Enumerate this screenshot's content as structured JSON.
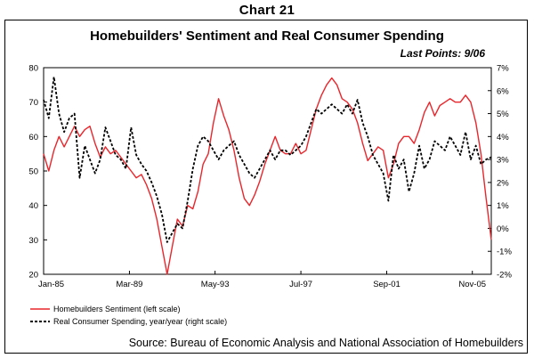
{
  "chart_label": "Chart 21",
  "chart_data": {
    "type": "line",
    "title": "Homebuilders' Sentiment and Real Consumer Spending",
    "subtitle": "Last Points: 9/06",
    "source": "Source: Bureau of Economic Analysis and National Association of Homebuilders",
    "x_ticks": [
      "Jan-85",
      "Mar-89",
      "May-93",
      "Jul-97",
      "Sep-01",
      "Nov-05"
    ],
    "x_tick_dates": [
      1985.0,
      1989.17,
      1993.33,
      1997.5,
      2001.67,
      2005.83
    ],
    "xlim": [
      1985.0,
      2006.75
    ],
    "ylim_left": [
      20,
      80
    ],
    "left_ticks": [
      "20",
      "30",
      "40",
      "50",
      "60",
      "70",
      "80"
    ],
    "left_tick_values": [
      20,
      30,
      40,
      50,
      60,
      70,
      80
    ],
    "ylim_right": [
      -2,
      7
    ],
    "right_ticks": [
      "-2%",
      "-1%",
      "0%",
      "1%",
      "2%",
      "3%",
      "4%",
      "5%",
      "6%",
      "7%"
    ],
    "right_tick_values": [
      -2,
      -1,
      0,
      1,
      2,
      3,
      4,
      5,
      6,
      7
    ],
    "grid": false,
    "legend_position": "bottom-left",
    "colors": {
      "sentiment": "#e8262c",
      "spending": "#000000"
    },
    "series": [
      {
        "name": "Homebuilders Sentiment (left scale)",
        "axis": "left",
        "style": "solid",
        "points": [
          [
            1985.0,
            55
          ],
          [
            1985.25,
            50
          ],
          [
            1985.5,
            56
          ],
          [
            1985.75,
            60
          ],
          [
            1986.0,
            57
          ],
          [
            1986.25,
            60
          ],
          [
            1986.5,
            63
          ],
          [
            1986.75,
            60
          ],
          [
            1987.0,
            62
          ],
          [
            1987.25,
            63
          ],
          [
            1987.5,
            58
          ],
          [
            1987.75,
            54
          ],
          [
            1988.0,
            57
          ],
          [
            1988.25,
            55
          ],
          [
            1988.5,
            56
          ],
          [
            1988.75,
            54
          ],
          [
            1989.0,
            52
          ],
          [
            1989.25,
            50
          ],
          [
            1989.5,
            48
          ],
          [
            1989.75,
            49
          ],
          [
            1990.0,
            46
          ],
          [
            1990.25,
            42
          ],
          [
            1990.5,
            36
          ],
          [
            1990.75,
            28
          ],
          [
            1991.0,
            20
          ],
          [
            1991.25,
            28
          ],
          [
            1991.5,
            36
          ],
          [
            1991.75,
            34
          ],
          [
            1992.0,
            40
          ],
          [
            1992.25,
            39
          ],
          [
            1992.5,
            44
          ],
          [
            1992.75,
            52
          ],
          [
            1993.0,
            55
          ],
          [
            1993.25,
            64
          ],
          [
            1993.5,
            71
          ],
          [
            1993.75,
            66
          ],
          [
            1994.0,
            62
          ],
          [
            1994.25,
            56
          ],
          [
            1994.5,
            48
          ],
          [
            1994.75,
            42
          ],
          [
            1995.0,
            40
          ],
          [
            1995.25,
            43
          ],
          [
            1995.5,
            47
          ],
          [
            1995.75,
            52
          ],
          [
            1996.0,
            56
          ],
          [
            1996.25,
            60
          ],
          [
            1996.5,
            56
          ],
          [
            1996.75,
            55
          ],
          [
            1997.0,
            55
          ],
          [
            1997.25,
            58
          ],
          [
            1997.5,
            55
          ],
          [
            1997.75,
            56
          ],
          [
            1998.0,
            62
          ],
          [
            1998.25,
            68
          ],
          [
            1998.5,
            72
          ],
          [
            1998.75,
            75
          ],
          [
            1999.0,
            77
          ],
          [
            1999.25,
            75
          ],
          [
            1999.5,
            71
          ],
          [
            1999.75,
            70
          ],
          [
            2000.0,
            68
          ],
          [
            2000.25,
            64
          ],
          [
            2000.5,
            58
          ],
          [
            2000.75,
            53
          ],
          [
            2001.0,
            55
          ],
          [
            2001.25,
            57
          ],
          [
            2001.5,
            56
          ],
          [
            2001.75,
            48
          ],
          [
            2002.0,
            52
          ],
          [
            2002.25,
            58
          ],
          [
            2002.5,
            60
          ],
          [
            2002.75,
            60
          ],
          [
            2003.0,
            58
          ],
          [
            2003.25,
            62
          ],
          [
            2003.5,
            67
          ],
          [
            2003.75,
            70
          ],
          [
            2004.0,
            66
          ],
          [
            2004.25,
            69
          ],
          [
            2004.5,
            70
          ],
          [
            2004.75,
            71
          ],
          [
            2005.0,
            70
          ],
          [
            2005.25,
            70
          ],
          [
            2005.5,
            72
          ],
          [
            2005.75,
            70
          ],
          [
            2006.0,
            64
          ],
          [
            2006.25,
            55
          ],
          [
            2006.5,
            42
          ],
          [
            2006.75,
            30
          ]
        ]
      },
      {
        "name": "Real Consumer Spending, year/year (right scale)",
        "axis": "right",
        "style": "dashed",
        "points": [
          [
            1985.0,
            5.6
          ],
          [
            1985.25,
            4.8
          ],
          [
            1985.5,
            6.6
          ],
          [
            1985.75,
            5.0
          ],
          [
            1986.0,
            4.2
          ],
          [
            1986.25,
            4.8
          ],
          [
            1986.5,
            5.0
          ],
          [
            1986.75,
            2.2
          ],
          [
            1987.0,
            3.6
          ],
          [
            1987.25,
            3.0
          ],
          [
            1987.5,
            2.4
          ],
          [
            1987.75,
            3.0
          ],
          [
            1988.0,
            4.4
          ],
          [
            1988.25,
            3.8
          ],
          [
            1988.5,
            3.2
          ],
          [
            1988.75,
            3.0
          ],
          [
            1989.0,
            2.6
          ],
          [
            1989.25,
            4.4
          ],
          [
            1989.5,
            3.2
          ],
          [
            1989.75,
            2.8
          ],
          [
            1990.0,
            2.5
          ],
          [
            1990.25,
            2.0
          ],
          [
            1990.5,
            1.4
          ],
          [
            1990.75,
            0.6
          ],
          [
            1991.0,
            -0.6
          ],
          [
            1991.25,
            -0.2
          ],
          [
            1991.5,
            0.2
          ],
          [
            1991.75,
            0.0
          ],
          [
            1992.0,
            1.2
          ],
          [
            1992.25,
            2.6
          ],
          [
            1992.5,
            3.6
          ],
          [
            1992.75,
            4.0
          ],
          [
            1993.0,
            3.8
          ],
          [
            1993.25,
            3.4
          ],
          [
            1993.5,
            3.0
          ],
          [
            1993.75,
            3.4
          ],
          [
            1994.0,
            3.6
          ],
          [
            1994.25,
            3.8
          ],
          [
            1994.5,
            3.2
          ],
          [
            1994.75,
            2.8
          ],
          [
            1995.0,
            2.4
          ],
          [
            1995.25,
            2.2
          ],
          [
            1995.5,
            2.6
          ],
          [
            1995.75,
            3.0
          ],
          [
            1996.0,
            3.4
          ],
          [
            1996.25,
            3.0
          ],
          [
            1996.5,
            3.4
          ],
          [
            1996.75,
            3.4
          ],
          [
            1997.0,
            3.2
          ],
          [
            1997.25,
            3.4
          ],
          [
            1997.5,
            3.6
          ],
          [
            1997.75,
            4.0
          ],
          [
            1998.0,
            4.6
          ],
          [
            1998.25,
            5.2
          ],
          [
            1998.5,
            5.0
          ],
          [
            1998.75,
            5.2
          ],
          [
            1999.0,
            5.4
          ],
          [
            1999.25,
            5.2
          ],
          [
            1999.5,
            5.0
          ],
          [
            1999.75,
            5.4
          ],
          [
            2000.0,
            5.0
          ],
          [
            2000.25,
            5.6
          ],
          [
            2000.5,
            4.6
          ],
          [
            2000.75,
            4.0
          ],
          [
            2001.0,
            3.2
          ],
          [
            2001.25,
            2.8
          ],
          [
            2001.5,
            2.4
          ],
          [
            2001.75,
            1.2
          ],
          [
            2002.0,
            3.2
          ],
          [
            2002.25,
            2.6
          ],
          [
            2002.5,
            3.0
          ],
          [
            2002.75,
            1.6
          ],
          [
            2003.0,
            2.4
          ],
          [
            2003.25,
            3.6
          ],
          [
            2003.5,
            2.6
          ],
          [
            2003.75,
            3.0
          ],
          [
            2004.0,
            3.8
          ],
          [
            2004.25,
            3.6
          ],
          [
            2004.5,
            3.4
          ],
          [
            2004.75,
            4.0
          ],
          [
            2005.0,
            3.6
          ],
          [
            2005.25,
            3.2
          ],
          [
            2005.5,
            4.2
          ],
          [
            2005.75,
            3.0
          ],
          [
            2006.0,
            3.6
          ],
          [
            2006.25,
            2.8
          ],
          [
            2006.5,
            3.0
          ],
          [
            2006.75,
            3.1
          ]
        ]
      }
    ]
  }
}
